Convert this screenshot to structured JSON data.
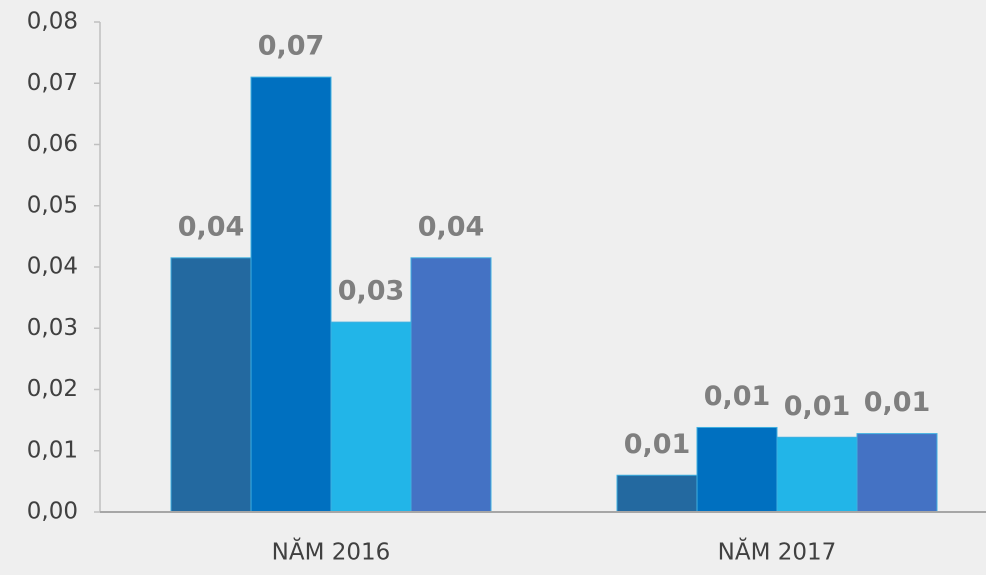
{
  "chart_data": {
    "type": "bar",
    "categories": [
      "NĂM 2016",
      "NĂM 2017"
    ],
    "series": [
      {
        "color": "#2369a0",
        "values": [
          0.0415,
          0.006
        ],
        "value_labels": [
          "0,04",
          "0,01"
        ]
      },
      {
        "color": "#0070c0",
        "values": [
          0.071,
          0.0138
        ],
        "value_labels": [
          "0,07",
          "0,01"
        ]
      },
      {
        "color": "#22b5e8",
        "values": [
          0.031,
          0.0122
        ],
        "value_labels": [
          "0,03",
          "0,01"
        ]
      },
      {
        "color": "#4472c4",
        "values": [
          0.0415,
          0.0128
        ],
        "value_labels": [
          "0,04",
          "0,01"
        ]
      }
    ],
    "ylim": [
      0,
      0.08
    ],
    "yticks": [
      {
        "value": 0,
        "label": "0,00"
      },
      {
        "value": 0.01,
        "label": "0,01"
      },
      {
        "value": 0.02,
        "label": "0,02"
      },
      {
        "value": 0.03,
        "label": "0,03"
      },
      {
        "value": 0.04,
        "label": "0,04"
      },
      {
        "value": 0.05,
        "label": "0,05"
      },
      {
        "value": 0.06,
        "label": "0,06"
      },
      {
        "value": 0.07,
        "label": "0,07"
      },
      {
        "value": 0.08,
        "label": "0,08"
      }
    ],
    "grid": false
  }
}
